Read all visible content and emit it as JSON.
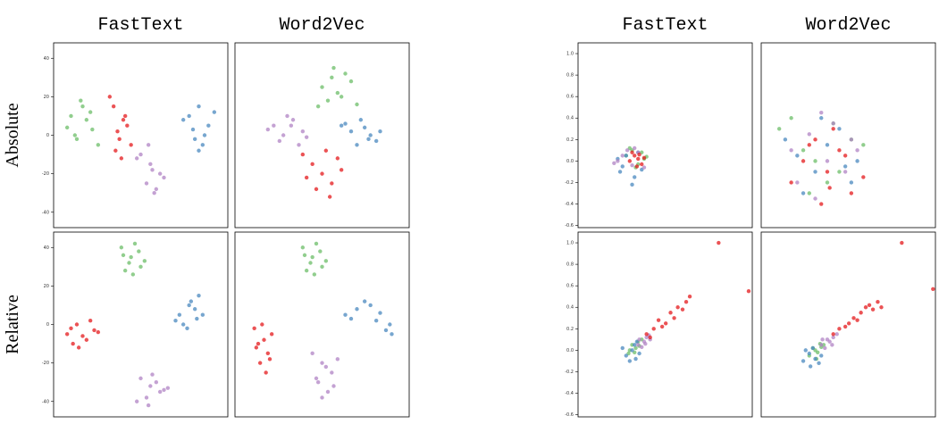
{
  "chart_data": [
    {
      "type": "scatter",
      "title": "FastText",
      "ylabel": "Absolute",
      "xlim": [
        -45,
        45
      ],
      "ylim": [
        -48,
        48
      ],
      "yticks": [
        -40,
        -20,
        0,
        20,
        40
      ],
      "series": [
        {
          "color": "#6cbd68",
          "x": [
            -36,
            -30,
            -25,
            -33,
            -28,
            -22,
            -38,
            -31,
            -26,
            -34
          ],
          "values": [
            10,
            15,
            3,
            -2,
            8,
            -5,
            4,
            18,
            12,
            0
          ]
        },
        {
          "color": "#e41a1c",
          "x": [
            -14,
            -8,
            -12,
            -5,
            -10,
            -16,
            -7,
            -11,
            -9,
            -13
          ],
          "values": [
            15,
            10,
            2,
            -5,
            -12,
            20,
            5,
            -2,
            8,
            -8
          ]
        },
        {
          "color": "#b083c4",
          "x": [
            0,
            5,
            10,
            3,
            8,
            -2,
            6,
            12,
            4,
            7
          ],
          "values": [
            -10,
            -15,
            -20,
            -25,
            -28,
            -12,
            -18,
            -22,
            -5,
            -30
          ]
        },
        {
          "color": "#4a88bf",
          "x": [
            25,
            30,
            35,
            28,
            33,
            22,
            38,
            30,
            27,
            32
          ],
          "values": [
            10,
            15,
            5,
            -2,
            0,
            8,
            12,
            -8,
            3,
            -5
          ]
        }
      ]
    },
    {
      "type": "scatter",
      "title": "Word2Vec",
      "xlim": [
        -45,
        45
      ],
      "ylim": [
        -48,
        48
      ],
      "series": [
        {
          "color": "#6cbd68",
          "x": [
            0,
            5,
            10,
            15,
            3,
            8,
            12,
            -2,
            6,
            18
          ],
          "values": [
            25,
            30,
            20,
            28,
            18,
            22,
            32,
            15,
            35,
            16
          ]
        },
        {
          "color": "#b083c4",
          "x": [
            -25,
            -20,
            -15,
            -10,
            -22,
            -18,
            -12,
            -28,
            -16,
            -8
          ],
          "values": [
            5,
            0,
            8,
            2,
            -3,
            10,
            -5,
            3,
            5,
            -1
          ]
        },
        {
          "color": "#4a88bf",
          "x": [
            10,
            15,
            20,
            25,
            28,
            18,
            22,
            30,
            12,
            24
          ],
          "values": [
            5,
            2,
            8,
            0,
            -3,
            -5,
            4,
            2,
            6,
            -2
          ]
        },
        {
          "color": "#e41a1c",
          "x": [
            -10,
            -5,
            0,
            5,
            10,
            -8,
            2,
            8,
            -3,
            4
          ],
          "values": [
            -10,
            -15,
            -20,
            -25,
            -18,
            -22,
            -8,
            -12,
            -28,
            -32
          ]
        }
      ]
    },
    {
      "type": "scatter",
      "ylabel": "Relative",
      "xlim": [
        -45,
        45
      ],
      "ylim": [
        -48,
        48
      ],
      "yticks": [
        -40,
        -20,
        0,
        20,
        40
      ],
      "series": [
        {
          "color": "#6cbd68",
          "x": [
            -10,
            -5,
            0,
            -8,
            -3,
            -6,
            -1,
            -4,
            -9,
            2
          ],
          "values": [
            40,
            35,
            30,
            28,
            42,
            32,
            38,
            26,
            36,
            33
          ]
        },
        {
          "color": "#4a88bf",
          "x": [
            20,
            25,
            30,
            22,
            28,
            18,
            26,
            32,
            24,
            29
          ],
          "values": [
            5,
            10,
            15,
            0,
            8,
            2,
            12,
            5,
            -2,
            3
          ]
        },
        {
          "color": "#e41a1c",
          "x": [
            -38,
            -33,
            -28,
            -24,
            -35,
            -30,
            -26,
            -36,
            -32,
            -22
          ],
          "values": [
            -5,
            0,
            -8,
            -3,
            -10,
            -6,
            2,
            -2,
            -12,
            -4
          ]
        },
        {
          "color": "#b083c4",
          "x": [
            0,
            5,
            10,
            3,
            8,
            -2,
            6,
            12,
            4,
            14
          ],
          "values": [
            -28,
            -32,
            -35,
            -38,
            -30,
            -40,
            -26,
            -34,
            -42,
            -33
          ]
        }
      ]
    },
    {
      "type": "scatter",
      "xlim": [
        -45,
        45
      ],
      "ylim": [
        -48,
        48
      ],
      "series": [
        {
          "color": "#6cbd68",
          "x": [
            -10,
            -5,
            0,
            -8,
            -3,
            -6,
            -1,
            -4,
            -9,
            2
          ],
          "values": [
            40,
            35,
            30,
            28,
            42,
            32,
            38,
            26,
            36,
            33
          ]
        },
        {
          "color": "#4a88bf",
          "x": [
            12,
            18,
            25,
            30,
            35,
            22,
            28,
            33,
            15,
            36
          ],
          "values": [
            5,
            8,
            10,
            6,
            0,
            12,
            2,
            -3,
            3,
            -5
          ]
        },
        {
          "color": "#e41a1c",
          "x": [
            -35,
            -30,
            -28,
            -32,
            -26,
            -34,
            -29,
            -31,
            -27,
            -33
          ],
          "values": [
            -2,
            -8,
            -15,
            -20,
            -5,
            -12,
            -25,
            0,
            -18,
            -10
          ]
        },
        {
          "color": "#b083c4",
          "x": [
            -5,
            0,
            5,
            -2,
            3,
            8,
            -3,
            2,
            6,
            0
          ],
          "values": [
            -15,
            -20,
            -25,
            -30,
            -35,
            -18,
            -28,
            -22,
            -32,
            -38
          ]
        }
      ]
    },
    {
      "type": "scatter",
      "title": "FastText",
      "xlim": [
        -0.45,
        1.0
      ],
      "ylim": [
        -0.62,
        1.1
      ],
      "yticks": [
        {
          "value": -0.6,
          "label": "-0.6"
        },
        {
          "value": -0.4,
          "label": "-0.4"
        },
        {
          "value": -0.2,
          "label": "-0.2"
        },
        {
          "value": 0,
          "label": "0.0"
        },
        {
          "value": 0.2,
          "label": "0.2"
        },
        {
          "value": 0.4,
          "label": "0.4"
        },
        {
          "value": 0.6,
          "label": "0.6"
        },
        {
          "value": 0.8,
          "label": "0.8"
        },
        {
          "value": 1,
          "label": "1.0"
        }
      ],
      "series": [
        {
          "color": "#6cbd68",
          "x": [
            -0.05,
            0,
            0.05,
            0.1,
            -0.02,
            0.08,
            0.03,
            0.12
          ],
          "values": [
            0.05,
            0.1,
            -0.03,
            0.02,
            0.12,
            0.08,
            -0.06,
            0.04
          ]
        },
        {
          "color": "#4a88bf",
          "x": [
            -0.1,
            -0.05,
            0.02,
            0.08,
            -0.12,
            0,
            0.05,
            -0.08
          ],
          "values": [
            -0.1,
            0.05,
            -0.15,
            -0.08,
            0.02,
            -0.22,
            0.08,
            -0.05
          ]
        },
        {
          "color": "#b083c4",
          "x": [
            -0.12,
            -0.08,
            0,
            0.05,
            -0.15,
            -0.04,
            0.1,
            0.02
          ],
          "values": [
            0,
            0.05,
            -0.04,
            0.08,
            -0.02,
            0.1,
            -0.06,
            0.12
          ]
        },
        {
          "color": "#e41a1c",
          "x": [
            -0.02,
            0.02,
            0.05,
            0.08,
            0,
            0.1,
            0.04,
            0.06
          ],
          "values": [
            0,
            0.05,
            0.02,
            -0.03,
            0.08,
            0.03,
            -0.05,
            0.06
          ]
        }
      ]
    },
    {
      "type": "scatter",
      "title": "Word2Vec",
      "xlim": [
        -0.45,
        1.0
      ],
      "ylim": [
        -0.62,
        1.1
      ],
      "series": [
        {
          "color": "#6cbd68",
          "x": [
            -0.3,
            -0.1,
            0.1,
            0.3,
            -0.2,
            0.2,
            0,
            0.4,
            -0.05,
            0.15
          ],
          "values": [
            0.3,
            0.1,
            -0.2,
            0.2,
            0.4,
            -0.1,
            0,
            0.15,
            -0.3,
            0.35
          ]
        },
        {
          "color": "#4a88bf",
          "x": [
            -0.25,
            0,
            0.2,
            0.35,
            -0.1,
            0.1,
            0.3,
            -0.15,
            0.05,
            0.25
          ],
          "values": [
            0.2,
            -0.1,
            0.3,
            0,
            -0.3,
            0.15,
            -0.2,
            0.05,
            0.4,
            -0.05
          ]
        },
        {
          "color": "#b083c4",
          "x": [
            -0.2,
            0.05,
            0.25,
            -0.05,
            0.15,
            0.35,
            -0.15,
            0.1,
            0.3,
            0
          ],
          "values": [
            0.1,
            0.45,
            -0.1,
            0.25,
            0.35,
            0.1,
            -0.2,
            0,
            0.2,
            -0.35
          ]
        },
        {
          "color": "#e41a1c",
          "x": [
            -0.1,
            0,
            0.1,
            0.2,
            0.3,
            -0.2,
            0.05,
            0.15,
            0.25,
            0.4,
            -0.05,
            0.12
          ],
          "values": [
            0,
            0.2,
            -0.1,
            0.1,
            -0.3,
            -0.2,
            -0.4,
            0.3,
            0.05,
            -0.15,
            0.15,
            -0.25
          ]
        }
      ]
    },
    {
      "type": "scatter",
      "xlim": [
        -0.45,
        1.0
      ],
      "ylim": [
        -0.62,
        1.1
      ],
      "yticks": [
        {
          "value": -0.6,
          "label": "-0.6"
        },
        {
          "value": -0.4,
          "label": "-0.4"
        },
        {
          "value": -0.2,
          "label": "-0.2"
        },
        {
          "value": 0,
          "label": "0.0"
        },
        {
          "value": 0.2,
          "label": "0.2"
        },
        {
          "value": 0.4,
          "label": "0.4"
        },
        {
          "value": 0.6,
          "label": "0.6"
        },
        {
          "value": 0.8,
          "label": "0.8"
        },
        {
          "value": 1,
          "label": "1.0"
        }
      ],
      "series": [
        {
          "color": "#6cbd68",
          "x": [
            -0.02,
            0,
            0.03,
            0.05,
            0.08,
            0.02,
            0.06,
            -0.03
          ],
          "values": [
            0,
            0.05,
            0.02,
            0.08,
            0.1,
            -0.02,
            0.04,
            -0.03
          ]
        },
        {
          "color": "#4a88bf",
          "x": [
            -0.05,
            0,
            0.03,
            -0.08,
            0.02,
            0.06,
            -0.02,
            0.04
          ],
          "values": [
            -0.05,
            0,
            -0.08,
            0.02,
            0.05,
            -0.03,
            -0.1,
            0.08
          ]
        },
        {
          "color": "#b083c4",
          "x": [
            0.05,
            0.1,
            0.12,
            0.08,
            0.15,
            0.06,
            0.11,
            0.14
          ],
          "values": [
            0.05,
            0.08,
            0.12,
            0.03,
            0.1,
            0.1,
            0.06,
            0.14
          ]
        },
        {
          "color": "#e41a1c",
          "x": [
            0.12,
            0.18,
            0.22,
            0.28,
            0.32,
            0.38,
            0.42,
            0.48,
            0.25,
            0.35,
            0.15,
            0.45,
            0.72,
            0.97
          ],
          "values": [
            0.15,
            0.2,
            0.28,
            0.25,
            0.35,
            0.4,
            0.38,
            0.5,
            0.22,
            0.3,
            0.12,
            0.45,
            1.0,
            0.55
          ]
        }
      ]
    },
    {
      "type": "scatter",
      "xlim": [
        -0.45,
        1.0
      ],
      "ylim": [
        -0.62,
        1.1
      ],
      "series": [
        {
          "color": "#6cbd68",
          "x": [
            -0.05,
            0,
            0.02,
            0.05,
            -0.02,
            0.04,
            0.07,
            0.01
          ],
          "values": [
            -0.05,
            0,
            -0.02,
            0.03,
            0.02,
            0.06,
            0.05,
            -0.08
          ]
        },
        {
          "color": "#4a88bf",
          "x": [
            -0.1,
            -0.05,
            0,
            -0.08,
            0.03,
            -0.02,
            0.05,
            -0.04
          ],
          "values": [
            -0.1,
            -0.03,
            -0.08,
            0,
            -0.12,
            0.02,
            -0.05,
            -0.15
          ]
        },
        {
          "color": "#b083c4",
          "x": [
            0.05,
            0.1,
            0.15,
            0.08,
            0.12,
            0.18,
            0.06,
            0.14
          ],
          "values": [
            0.05,
            0.1,
            0.12,
            0.02,
            0.08,
            0.15,
            0.1,
            0.05
          ]
        },
        {
          "color": "#e41a1c",
          "x": [
            0.15,
            0.2,
            0.28,
            0.32,
            0.38,
            0.42,
            0.48,
            0.52,
            0.25,
            0.35,
            0.45,
            0.55,
            0.72,
            0.98
          ],
          "values": [
            0.15,
            0.2,
            0.25,
            0.3,
            0.35,
            0.4,
            0.38,
            0.45,
            0.22,
            0.28,
            0.42,
            0.4,
            1.0,
            0.57
          ]
        }
      ]
    }
  ]
}
